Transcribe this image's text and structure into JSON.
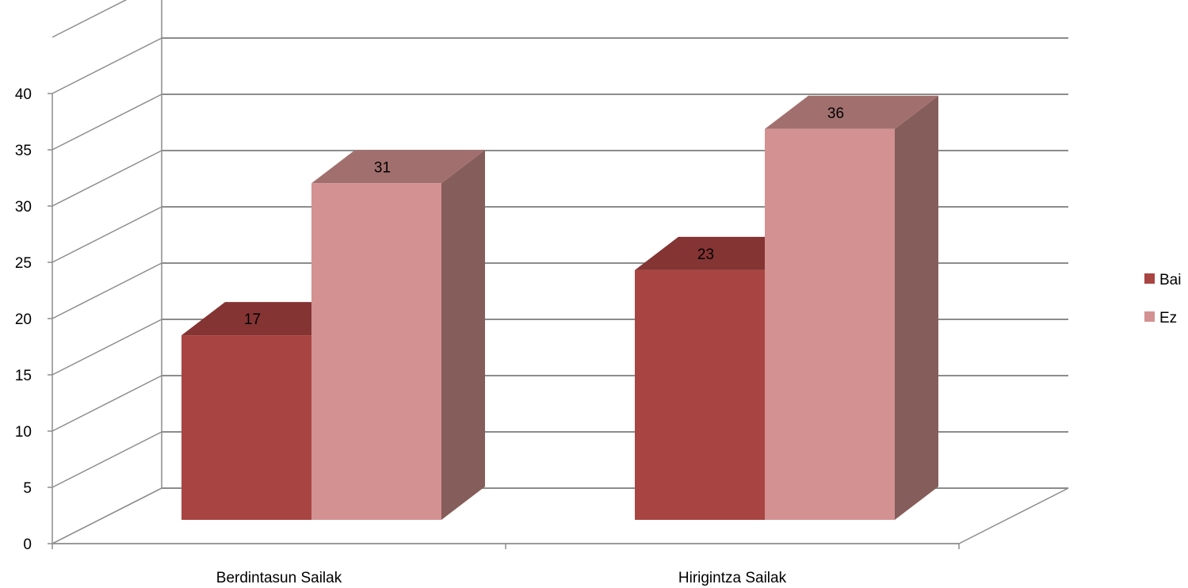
{
  "chart_data": {
    "type": "bar",
    "style": "3d-clustered-column",
    "categories": [
      "Berdintasun Sailak",
      "Hirigintza Sailak"
    ],
    "series": [
      {
        "name": "Bai",
        "values": [
          17,
          23
        ],
        "color": "#A84542",
        "top_color": "#843433",
        "side_color": "#7A3332"
      },
      {
        "name": "Ez",
        "values": [
          31,
          36
        ],
        "color": "#D39191",
        "top_color": "#A1706E",
        "side_color": "#855D5B"
      }
    ],
    "yticks": [
      0,
      5,
      10,
      15,
      20,
      25,
      30,
      35,
      40
    ],
    "ylim": [
      0,
      40
    ],
    "grid": true,
    "legend_position": "right",
    "title": "",
    "xlabel": "",
    "ylabel": ""
  }
}
